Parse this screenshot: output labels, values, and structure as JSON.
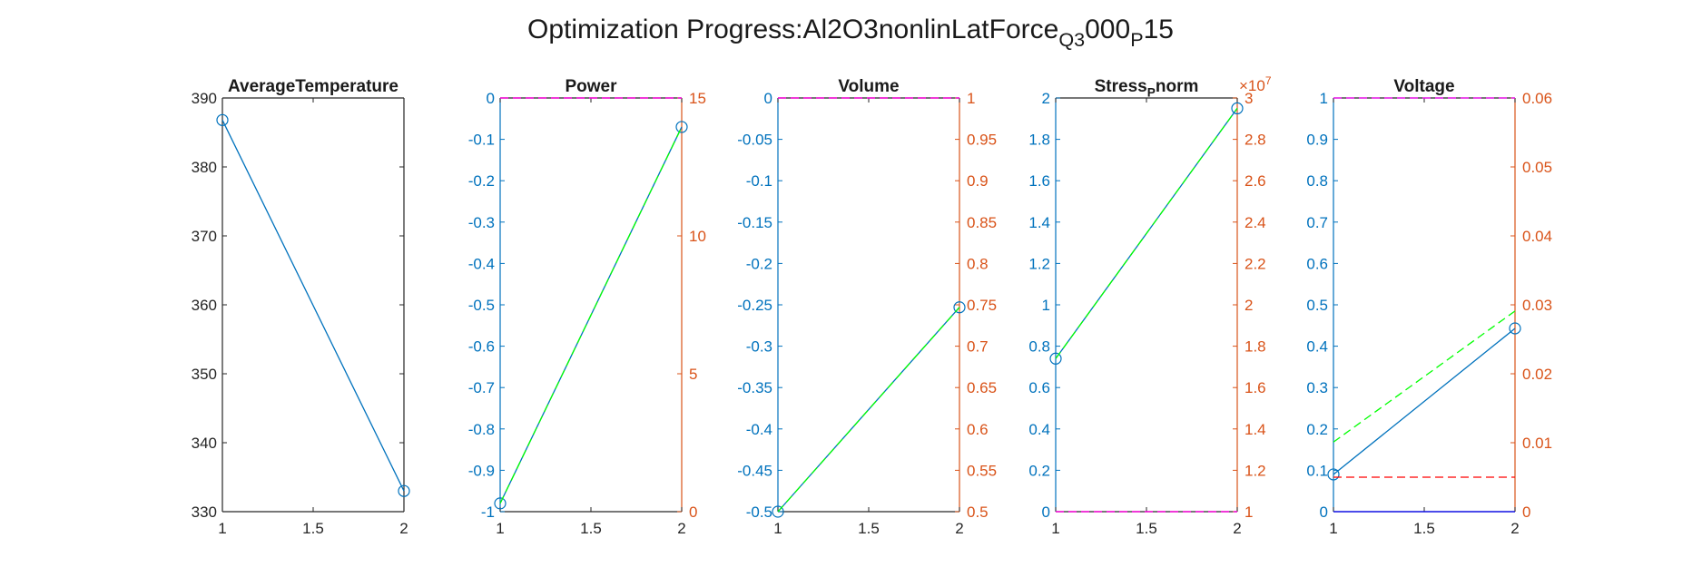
{
  "figure": {
    "title_parts": [
      {
        "text": "Optimization Progress:Al2O3nonlinLatForce",
        "sub": false
      },
      {
        "text": "Q3",
        "sub": true
      },
      {
        "text": "000",
        "sub": false
      },
      {
        "text": "P",
        "sub": true
      },
      {
        "text": "15",
        "sub": false
      }
    ]
  },
  "colors": {
    "axis_black": "#262626",
    "left_axis_blue": "#0072BD",
    "right_axis_orange": "#D95319",
    "series_blue": "#0072BD",
    "series_green": "#00FF00",
    "series_red": "#FF0000",
    "series_magenta": "#FF00FF",
    "series_navy": "#0000FF"
  },
  "chart_data": [
    {
      "type": "line",
      "title_parts": [
        {
          "text": "AverageTemperature",
          "sub": false
        }
      ],
      "x": [
        1,
        2
      ],
      "xlim": [
        1,
        2
      ],
      "xticks": [
        1,
        1.5,
        2
      ],
      "left_axis": {
        "ylim": [
          330,
          390
        ],
        "ticks": [
          330,
          340,
          350,
          360,
          370,
          380,
          390
        ],
        "color": "#262626"
      },
      "right_axis": null,
      "series": [
        {
          "axis": "left",
          "values": [
            386.8,
            333.0
          ],
          "color": "#0072BD",
          "dash": "solid",
          "markers": true
        }
      ]
    },
    {
      "type": "line",
      "title_parts": [
        {
          "text": "Power",
          "sub": false
        }
      ],
      "x": [
        1,
        2
      ],
      "xlim": [
        1,
        2
      ],
      "xticks": [
        1,
        1.5,
        2
      ],
      "left_axis": {
        "ylim": [
          -1,
          0
        ],
        "ticks": [
          -1,
          -0.9,
          -0.8,
          -0.7,
          -0.6,
          -0.5,
          -0.4,
          -0.3,
          -0.2,
          -0.1,
          0
        ],
        "color": "#0072BD"
      },
      "right_axis": {
        "ylim": [
          0,
          15
        ],
        "ticks": [
          0,
          5,
          10,
          15
        ],
        "color": "#D95319"
      },
      "series": [
        {
          "axis": "left",
          "values": [
            -0.98,
            -0.07
          ],
          "color": "#0072BD",
          "dash": "solid",
          "markers": true
        },
        {
          "axis": "right",
          "values": [
            0.3,
            13.95
          ],
          "color": "#00FF00",
          "dash": "dashed",
          "markers": false
        },
        {
          "axis": "right",
          "values": [
            15,
            15
          ],
          "color": "#FF0000",
          "dash": "dashed",
          "markers": false
        },
        {
          "axis": "left",
          "values": [
            0,
            0
          ],
          "color": "#FF00FF",
          "dash": "dashed",
          "markers": false
        }
      ]
    },
    {
      "type": "line",
      "title_parts": [
        {
          "text": "Volume",
          "sub": false
        }
      ],
      "x": [
        1,
        2
      ],
      "xlim": [
        1,
        2
      ],
      "xticks": [
        1,
        1.5,
        2
      ],
      "left_axis": {
        "ylim": [
          -0.5,
          0
        ],
        "ticks": [
          -0.5,
          -0.45,
          -0.4,
          -0.35,
          -0.3,
          -0.25,
          -0.2,
          -0.15,
          -0.1,
          -0.05,
          0
        ],
        "color": "#0072BD"
      },
      "right_axis": {
        "ylim": [
          0.5,
          1
        ],
        "ticks": [
          0.5,
          0.55,
          0.6,
          0.65,
          0.7,
          0.75,
          0.8,
          0.85,
          0.9,
          0.95,
          1
        ],
        "color": "#D95319"
      },
      "series": [
        {
          "axis": "left",
          "values": [
            -0.5,
            -0.253
          ],
          "color": "#0072BD",
          "dash": "solid",
          "markers": true
        },
        {
          "axis": "right",
          "values": [
            0.5,
            0.747
          ],
          "color": "#00FF00",
          "dash": "dashed",
          "markers": false
        },
        {
          "axis": "right",
          "values": [
            1,
            1
          ],
          "color": "#FF0000",
          "dash": "dashed",
          "markers": false
        },
        {
          "axis": "left",
          "values": [
            0,
            0
          ],
          "color": "#FF00FF",
          "dash": "dashed",
          "markers": false
        }
      ]
    },
    {
      "type": "line",
      "title_parts": [
        {
          "text": "Stress",
          "sub": false
        },
        {
          "text": "P",
          "sub": true
        },
        {
          "text": "norm",
          "sub": false
        }
      ],
      "x": [
        1,
        2
      ],
      "xlim": [
        1,
        2
      ],
      "xticks": [
        1,
        1.5,
        2
      ],
      "left_axis": {
        "ylim": [
          0,
          2
        ],
        "ticks": [
          0,
          0.2,
          0.4,
          0.6,
          0.8,
          1,
          1.2,
          1.4,
          1.6,
          1.8,
          2
        ],
        "color": "#0072BD"
      },
      "right_axis": {
        "ylim": [
          1,
          3
        ],
        "ticks": [
          1,
          1.2,
          1.4,
          1.6,
          1.8,
          2,
          2.2,
          2.4,
          2.6,
          2.8,
          3
        ],
        "color": "#D95319",
        "exponent_label": "×10",
        "exponent_power": "7"
      },
      "series": [
        {
          "axis": "left",
          "values": [
            0.74,
            1.95
          ],
          "color": "#0072BD",
          "dash": "solid",
          "markers": true
        },
        {
          "axis": "right",
          "values": [
            1.74,
            2.95
          ],
          "color": "#00FF00",
          "dash": "dashed",
          "markers": false
        },
        {
          "axis": "right",
          "values": [
            1,
            1
          ],
          "color": "#FF0000",
          "dash": "dashed",
          "markers": false
        },
        {
          "axis": "left",
          "values": [
            0,
            0
          ],
          "color": "#FF00FF",
          "dash": "dashed",
          "markers": false
        }
      ]
    },
    {
      "type": "line",
      "title_parts": [
        {
          "text": "Voltage",
          "sub": false
        }
      ],
      "x": [
        1,
        2
      ],
      "xlim": [
        1,
        2
      ],
      "xticks": [
        1,
        1.5,
        2
      ],
      "left_axis": {
        "ylim": [
          0,
          1
        ],
        "ticks": [
          0,
          0.1,
          0.2,
          0.3,
          0.4,
          0.5,
          0.6,
          0.7,
          0.8,
          0.9,
          1
        ],
        "color": "#0072BD"
      },
      "right_axis": {
        "ylim": [
          0,
          0.06
        ],
        "ticks": [
          0,
          0.01,
          0.02,
          0.03,
          0.04,
          0.05,
          0.06
        ],
        "color": "#D95319"
      },
      "series": [
        {
          "axis": "left",
          "values": [
            0.09,
            0.443
          ],
          "color": "#0072BD",
          "dash": "solid",
          "markers": true
        },
        {
          "axis": "right",
          "values": [
            0.0101,
            0.0291
          ],
          "color": "#00FF00",
          "dash": "dashed",
          "markers": false
        },
        {
          "axis": "right",
          "values": [
            0.005,
            0.005
          ],
          "color": "#FF0000",
          "dash": "dashed",
          "markers": false
        },
        {
          "axis": "left",
          "values": [
            1,
            1
          ],
          "color": "#FF00FF",
          "dash": "dashed",
          "markers": false
        },
        {
          "axis": "left",
          "values": [
            0,
            0
          ],
          "color": "#0000FF",
          "dash": "solid",
          "markers": false
        }
      ]
    }
  ]
}
